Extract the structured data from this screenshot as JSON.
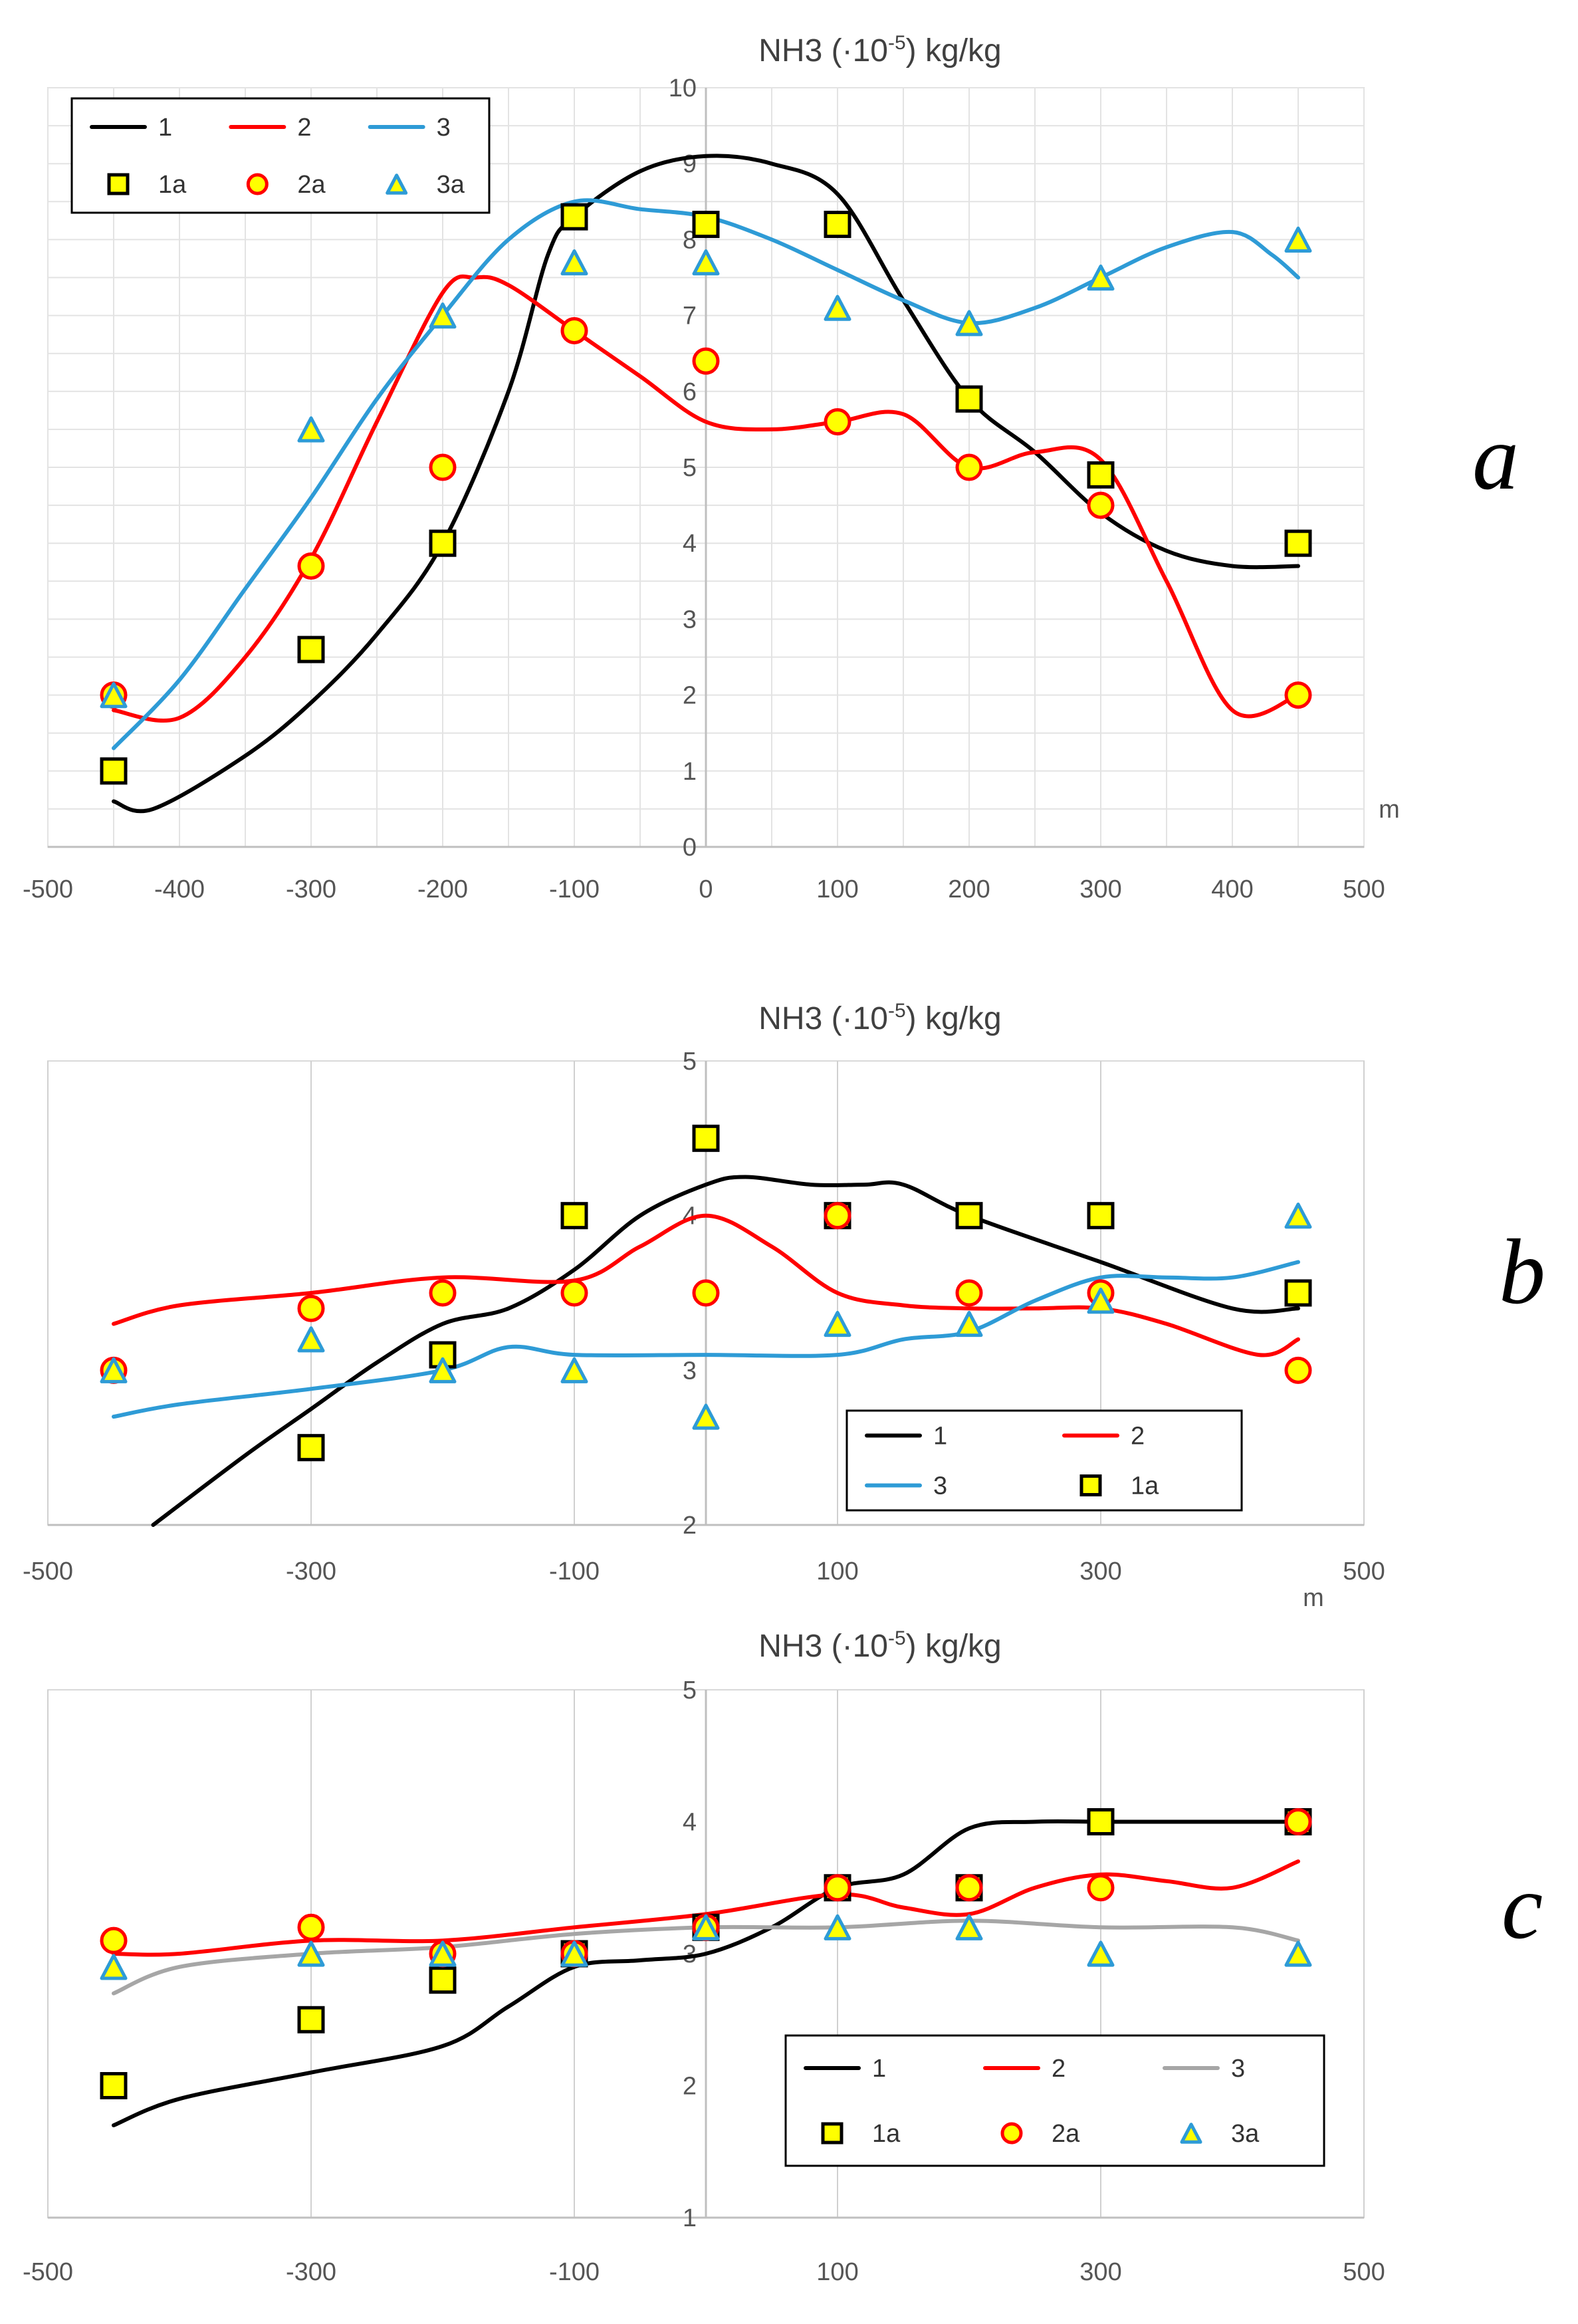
{
  "chart_data": [
    {
      "type": "line",
      "panel_label": "a",
      "title": "NH3 (·10",
      "title_exp": "-5",
      "title_unit": ") kg/kg",
      "xlabel": "m",
      "xlim": [
        -500,
        500
      ],
      "ylim": [
        0,
        10
      ],
      "xticks": [
        -500,
        -400,
        -300,
        -200,
        -100,
        0,
        100,
        200,
        300,
        400,
        500
      ],
      "yticks": [
        0,
        1,
        2,
        3,
        4,
        5,
        6,
        7,
        8,
        9,
        10
      ],
      "grid": "full",
      "legend_position": "top-left",
      "legend": [
        "1",
        "2",
        "3",
        "1a",
        "2a",
        "3a"
      ],
      "series": [
        {
          "name": "1",
          "kind": "line",
          "color": "#000000",
          "x": [
            -450,
            -420,
            -350,
            -300,
            -250,
            -200,
            -150,
            -120,
            -100,
            -50,
            0,
            50,
            100,
            150,
            200,
            250,
            300,
            350,
            400,
            450
          ],
          "y": [
            0.6,
            0.5,
            1.2,
            1.9,
            2.8,
            4.0,
            6.0,
            7.8,
            8.3,
            8.9,
            9.1,
            9.0,
            8.6,
            7.2,
            5.9,
            5.2,
            4.4,
            3.9,
            3.7,
            3.7
          ]
        },
        {
          "name": "2",
          "kind": "line",
          "color": "#ff0000",
          "x": [
            -450,
            -400,
            -350,
            -300,
            -250,
            -200,
            -175,
            -150,
            -100,
            -50,
            0,
            50,
            100,
            150,
            200,
            250,
            300,
            350,
            400,
            450
          ],
          "y": [
            1.8,
            1.7,
            2.5,
            3.8,
            5.6,
            7.3,
            7.5,
            7.4,
            6.8,
            6.2,
            5.6,
            5.5,
            5.6,
            5.7,
            5.0,
            5.2,
            5.1,
            3.5,
            1.8,
            2.0
          ]
        },
        {
          "name": "3",
          "kind": "line",
          "color": "#2e9bd6",
          "x": [
            -450,
            -400,
            -350,
            -300,
            -250,
            -200,
            -150,
            -100,
            -50,
            0,
            50,
            100,
            150,
            200,
            250,
            300,
            350,
            400,
            430,
            450
          ],
          "y": [
            1.3,
            2.2,
            3.4,
            4.6,
            5.9,
            7.0,
            8.0,
            8.5,
            8.4,
            8.3,
            8.0,
            7.6,
            7.2,
            6.9,
            7.1,
            7.5,
            7.9,
            8.1,
            7.8,
            7.5
          ]
        },
        {
          "name": "1a",
          "kind": "marker",
          "marker": "square",
          "x": [
            -450,
            -300,
            -200,
            -100,
            0,
            100,
            200,
            300,
            450
          ],
          "y": [
            1.0,
            2.6,
            4.0,
            8.3,
            8.2,
            8.2,
            5.9,
            4.9,
            4.0
          ]
        },
        {
          "name": "2a",
          "kind": "marker",
          "marker": "circle",
          "x": [
            -450,
            -300,
            -200,
            -100,
            0,
            100,
            200,
            300,
            450
          ],
          "y": [
            2.0,
            3.7,
            5.0,
            6.8,
            6.4,
            5.6,
            5.0,
            4.5,
            2.0
          ]
        },
        {
          "name": "3a",
          "kind": "marker",
          "marker": "triangle",
          "x": [
            -450,
            -300,
            -200,
            -100,
            0,
            100,
            200,
            300,
            450
          ],
          "y": [
            2.0,
            5.5,
            7.0,
            7.7,
            7.7,
            7.1,
            6.9,
            7.5,
            8.0
          ]
        }
      ]
    },
    {
      "type": "line",
      "panel_label": "b",
      "title": "NH3 (·10",
      "title_exp": "-5",
      "title_unit": ") kg/kg",
      "xlabel": "m",
      "xlim": [
        -500,
        500
      ],
      "ylim": [
        2,
        5
      ],
      "xticks": [
        -500,
        -300,
        -100,
        100,
        300,
        500
      ],
      "yticks": [
        2,
        3,
        4,
        5
      ],
      "grid": "vertical",
      "legend_position": "bottom-right",
      "legend": [
        "1",
        "2",
        "3",
        "1a"
      ],
      "series": [
        {
          "name": "1",
          "kind": "line",
          "color": "#000000",
          "x": [
            -420,
            -350,
            -300,
            -250,
            -200,
            -150,
            -100,
            -50,
            0,
            30,
            80,
            120,
            150,
            200,
            300,
            400,
            450
          ],
          "y": [
            2.0,
            2.45,
            2.75,
            3.05,
            3.3,
            3.4,
            3.65,
            4.0,
            4.2,
            4.25,
            4.2,
            4.2,
            4.2,
            4.0,
            3.7,
            3.4,
            3.4
          ]
        },
        {
          "name": "2",
          "kind": "line",
          "color": "#ff0000",
          "x": [
            -450,
            -400,
            -300,
            -200,
            -100,
            -50,
            0,
            50,
            100,
            150,
            200,
            250,
            300,
            350,
            420,
            450
          ],
          "y": [
            3.3,
            3.42,
            3.5,
            3.6,
            3.58,
            3.8,
            4.0,
            3.8,
            3.5,
            3.42,
            3.4,
            3.4,
            3.4,
            3.3,
            3.1,
            3.2
          ]
        },
        {
          "name": "3",
          "kind": "line",
          "color": "#2e9bd6",
          "x": [
            -450,
            -400,
            -300,
            -200,
            -150,
            -100,
            0,
            100,
            150,
            200,
            250,
            300,
            350,
            400,
            450
          ],
          "y": [
            2.7,
            2.78,
            2.88,
            3.0,
            3.15,
            3.1,
            3.1,
            3.1,
            3.2,
            3.25,
            3.45,
            3.6,
            3.6,
            3.6,
            3.7
          ]
        },
        {
          "name": "1a",
          "kind": "marker",
          "marker": "square",
          "x": [
            -300,
            -200,
            -100,
            0,
            100,
            200,
            300,
            450
          ],
          "y": [
            2.5,
            3.1,
            4.0,
            4.5,
            4.0,
            4.0,
            4.0,
            3.5
          ]
        },
        {
          "name": "2a",
          "kind": "marker",
          "marker": "circle",
          "x": [
            -450,
            -300,
            -200,
            -100,
            0,
            100,
            200,
            300,
            450
          ],
          "y": [
            3.0,
            3.4,
            3.5,
            3.5,
            3.5,
            4.0,
            3.5,
            3.5,
            3.0
          ]
        },
        {
          "name": "3a",
          "kind": "marker",
          "marker": "triangle",
          "x": [
            -450,
            -300,
            -200,
            -100,
            0,
            100,
            200,
            300,
            450
          ],
          "y": [
            3.0,
            3.2,
            3.0,
            3.0,
            2.7,
            3.3,
            3.3,
            3.45,
            4.0
          ]
        }
      ]
    },
    {
      "type": "line",
      "panel_label": "c",
      "title": "NH3 (·10",
      "title_exp": "-5",
      "title_unit": ") kg/kg",
      "xlabel": "",
      "xlim": [
        -500,
        500
      ],
      "ylim": [
        1,
        5
      ],
      "xticks": [
        -500,
        -300,
        -100,
        100,
        300,
        500
      ],
      "yticks": [
        1,
        2,
        3,
        4,
        5
      ],
      "grid": "vertical",
      "legend_position": "bottom-right",
      "legend": [
        "1",
        "2",
        "3",
        "1a",
        "2a",
        "3a"
      ],
      "series": [
        {
          "name": "1",
          "kind": "line",
          "color": "#000000",
          "x": [
            -450,
            -400,
            -300,
            -200,
            -150,
            -100,
            -50,
            0,
            50,
            100,
            150,
            200,
            250,
            300,
            350,
            400,
            450
          ],
          "y": [
            1.7,
            1.9,
            2.1,
            2.3,
            2.6,
            2.9,
            2.95,
            3.0,
            3.2,
            3.5,
            3.6,
            3.95,
            4.0,
            4.0,
            4.0,
            4.0,
            4.0
          ]
        },
        {
          "name": "2",
          "kind": "line",
          "color": "#ff0000",
          "x": [
            -450,
            -400,
            -300,
            -200,
            -100,
            0,
            100,
            150,
            200,
            250,
            300,
            350,
            400,
            450
          ],
          "y": [
            3.0,
            3.0,
            3.1,
            3.1,
            3.2,
            3.3,
            3.45,
            3.35,
            3.3,
            3.5,
            3.6,
            3.55,
            3.5,
            3.7
          ]
        },
        {
          "name": "3",
          "kind": "line",
          "color": "#a6a6a6",
          "x": [
            -450,
            -400,
            -300,
            -200,
            -100,
            0,
            100,
            200,
            300,
            400,
            450
          ],
          "y": [
            2.7,
            2.9,
            3.0,
            3.05,
            3.15,
            3.2,
            3.2,
            3.25,
            3.2,
            3.2,
            3.1
          ]
        },
        {
          "name": "1a",
          "kind": "marker",
          "marker": "square",
          "x": [
            -450,
            -300,
            -200,
            -100,
            0,
            100,
            200,
            300,
            450
          ],
          "y": [
            2.0,
            2.5,
            2.8,
            3.0,
            3.2,
            3.5,
            3.5,
            4.0,
            4.0
          ]
        },
        {
          "name": "2a",
          "kind": "marker",
          "marker": "circle",
          "x": [
            -450,
            -300,
            -200,
            -100,
            0,
            100,
            200,
            300,
            450
          ],
          "y": [
            3.1,
            3.2,
            3.0,
            3.0,
            3.2,
            3.5,
            3.5,
            3.5,
            4.0
          ]
        },
        {
          "name": "3a",
          "kind": "marker",
          "marker": "triangle",
          "x": [
            -450,
            -300,
            -200,
            -100,
            0,
            100,
            200,
            300,
            450
          ],
          "y": [
            2.9,
            3.0,
            3.0,
            3.0,
            3.2,
            3.2,
            3.2,
            3.0,
            3.0
          ]
        }
      ]
    }
  ]
}
